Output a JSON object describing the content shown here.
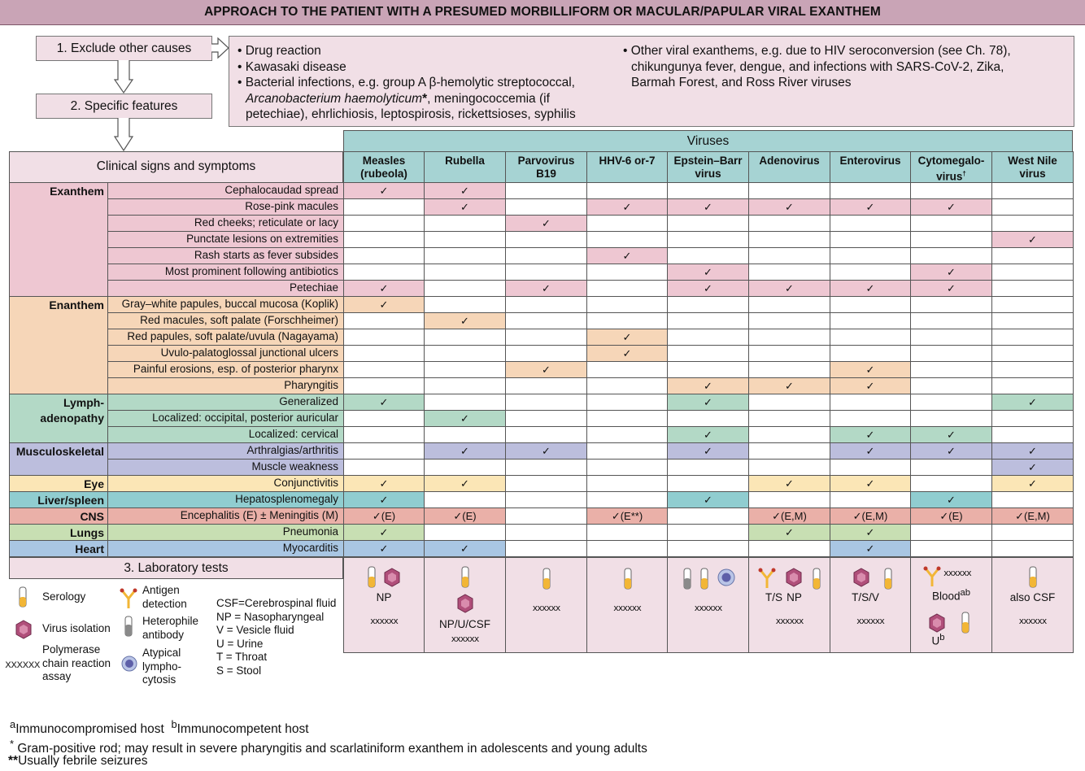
{
  "title": "APPROACH TO THE PATIENT WITH A PRESUMED MORBILLIFORM OR MACULAR/PAPULAR VIRAL EXANTHEM",
  "steps": {
    "step1": "1. Exclude other causes",
    "step2": "2. Specific features",
    "step3": "3. Laboratory tests"
  },
  "exclude": {
    "left": [
      "Drug reaction",
      "Kawasaki disease",
      "Bacterial infections, e.g. group A β-hemolytic streptococcal,"
    ],
    "left_italic": "Arcanobacterium haemolyticum",
    "left_star": "*",
    "left_after_italic": ", meningococcemia (if",
    "left_last": "petechiae), ehrlichiosis, leptospirosis, rickettsioses, syphilis",
    "right": [
      "Other viral exanthems, e.g. due to HIV seroconversion (see Ch. 78),",
      "chikungunya fever, dengue, and infections with SARS-CoV-2, Zika,",
      "Barmah Forest, and Ross River viruses"
    ]
  },
  "table": {
    "viruses_label": "Viruses",
    "signs_header": "Clinical signs and symptoms",
    "viruses": [
      {
        "l1": "Measles",
        "l2": "(rubeola)",
        "sup": ""
      },
      {
        "l1": "Rubella",
        "l2": "",
        "sup": ""
      },
      {
        "l1": "Parvovirus",
        "l2": "B19",
        "sup": ""
      },
      {
        "l1": "HHV-6 or-7",
        "l2": "",
        "sup": ""
      },
      {
        "l1": "Epstein–Barr",
        "l2": "virus",
        "sup": ""
      },
      {
        "l1": "Adenovirus",
        "l2": "",
        "sup": ""
      },
      {
        "l1": "Enterovirus",
        "l2": "",
        "sup": ""
      },
      {
        "l1": "Cytomegalo-",
        "l2": "virus",
        "sup": "†"
      },
      {
        "l1": "West Nile",
        "l2": "virus",
        "sup": ""
      }
    ],
    "categories": [
      {
        "name": "Exanthem",
        "name2": "",
        "color": "#eec7d2",
        "rows": [
          {
            "sign": "Cephalocaudad spread",
            "marks": [
              "✓",
              "✓",
              "",
              "",
              "",
              "",
              "",
              "",
              ""
            ]
          },
          {
            "sign": "Rose-pink macules",
            "marks": [
              "",
              "✓",
              "",
              "✓",
              "✓",
              "✓",
              "✓",
              "✓",
              ""
            ]
          },
          {
            "sign": "Red cheeks; reticulate or lacy",
            "marks": [
              "",
              "",
              "✓",
              "",
              "",
              "",
              "",
              "",
              ""
            ]
          },
          {
            "sign": "Punctate lesions on extremities",
            "marks": [
              "",
              "",
              "",
              "",
              "",
              "",
              "",
              "",
              "✓"
            ]
          },
          {
            "sign": "Rash starts as fever subsides",
            "marks": [
              "",
              "",
              "",
              "✓",
              "",
              "",
              "",
              "",
              ""
            ]
          },
          {
            "sign": "Most prominent following antibiotics",
            "marks": [
              "",
              "",
              "",
              "",
              "✓",
              "",
              "",
              "✓",
              ""
            ]
          },
          {
            "sign": "Petechiae",
            "marks": [
              "✓",
              "",
              "✓",
              "",
              "✓",
              "✓",
              "✓",
              "✓",
              ""
            ]
          }
        ]
      },
      {
        "name": "Enanthem",
        "name2": "",
        "color": "#f6d6b8",
        "rows": [
          {
            "sign": "Gray–white papules, buccal mucosa (Koplik)",
            "marks": [
              "✓",
              "",
              "",
              "",
              "",
              "",
              "",
              "",
              ""
            ]
          },
          {
            "sign": "Red macules, soft palate (Forschheimer)",
            "marks": [
              "",
              "✓",
              "",
              "",
              "",
              "",
              "",
              "",
              ""
            ]
          },
          {
            "sign": "Red papules, soft palate/uvula (Nagayama)",
            "marks": [
              "",
              "",
              "",
              "✓",
              "",
              "",
              "",
              "",
              ""
            ]
          },
          {
            "sign": "Uvulo-palatoglossal junctional ulcers",
            "marks": [
              "",
              "",
              "",
              "✓",
              "",
              "",
              "",
              "",
              ""
            ]
          },
          {
            "sign": "Painful erosions, esp. of posterior pharynx",
            "marks": [
              "",
              "",
              "✓",
              "",
              "",
              "",
              "✓",
              "",
              ""
            ]
          },
          {
            "sign": "Pharyngitis",
            "marks": [
              "",
              "",
              "",
              "",
              "✓",
              "✓",
              "✓",
              "",
              ""
            ]
          }
        ]
      },
      {
        "name": "Lymph-",
        "name2": "adenopathy",
        "color": "#b3d9c6",
        "rows": [
          {
            "sign": "Generalized",
            "marks": [
              "✓",
              "",
              "",
              "",
              "✓",
              "",
              "",
              "",
              "✓"
            ]
          },
          {
            "sign": "Localized: occipital, posterior auricular",
            "marks": [
              "",
              "✓",
              "",
              "",
              "",
              "",
              "",
              "",
              ""
            ]
          },
          {
            "sign": "Localized: cervical",
            "marks": [
              "",
              "",
              "",
              "",
              "✓",
              "",
              "✓",
              "✓",
              ""
            ]
          }
        ]
      },
      {
        "name": "Musculoskeletal",
        "name2": "",
        "color": "#bcbedd",
        "rows": [
          {
            "sign": "Arthralgias/arthritis",
            "marks": [
              "",
              "✓",
              "✓",
              "",
              "✓",
              "",
              "✓",
              "✓",
              "✓"
            ]
          },
          {
            "sign": "Muscle weakness",
            "marks": [
              "",
              "",
              "",
              "",
              "",
              "",
              "",
              "",
              "✓"
            ]
          }
        ]
      },
      {
        "name": "Eye",
        "name2": "",
        "color": "#fbe6b6",
        "rows": [
          {
            "sign": "Conjunctivitis",
            "marks": [
              "✓",
              "✓",
              "",
              "",
              "",
              "✓",
              "✓",
              "",
              "✓"
            ]
          }
        ]
      },
      {
        "name": "Liver/spleen",
        "name2": "",
        "color": "#90cdd0",
        "rows": [
          {
            "sign": "Hepatosplenomegaly",
            "marks": [
              "✓",
              "",
              "",
              "",
              "✓",
              "",
              "",
              "✓",
              ""
            ]
          }
        ]
      },
      {
        "name": "CNS",
        "name2": "",
        "color": "#eab0a8",
        "rows": [
          {
            "sign": "Encephalitis (E) ± Meningitis (M)",
            "marks": [
              "✓(E)",
              "✓(E)",
              "",
              "✓(E**)",
              "",
              "✓(E,M)",
              "✓(E,M)",
              "✓(E)",
              "✓(E,M)"
            ]
          }
        ]
      },
      {
        "name": "Lungs",
        "name2": "",
        "color": "#c8dfb3",
        "rows": [
          {
            "sign": "Pneumonia",
            "marks": [
              "✓",
              "",
              "",
              "",
              "",
              "✓",
              "✓",
              "",
              ""
            ]
          }
        ]
      },
      {
        "name": "Heart",
        "name2": "",
        "color": "#a9c6e3",
        "rows": [
          {
            "sign": "Myocarditis",
            "marks": [
              "✓",
              "✓",
              "",
              "",
              "",
              "",
              "✓",
              "",
              ""
            ]
          }
        ]
      }
    ]
  },
  "lab": {
    "measles": {
      "l1": "NP",
      "l2": "xxxxxx"
    },
    "rubella": {
      "l1": "NP/U/CSF",
      "l2": "xxxxxx"
    },
    "parvo": {
      "l1": "xxxxxx"
    },
    "hhv": {
      "l1": "xxxxxx"
    },
    "ebv": {
      "l1": "xxxxxx"
    },
    "adeno": {
      "a": "T/S",
      "b": "NP",
      "l2": "xxxxxx"
    },
    "entero": {
      "l1": "T/S/V",
      "l2": "xxxxxx"
    },
    "cmv": {
      "pcr": "xxxxxx",
      "blood": "Blood",
      "blood_sup": "ab",
      "u": "U",
      "u_sup": "b"
    },
    "wnv": {
      "l1": "also CSF",
      "l2": "xxxxxx"
    }
  },
  "legend": {
    "serology": "Serology",
    "antigen": "Antigen detection",
    "virus_isolation": "Virus isolation",
    "heterophile": "Heterophile antibody",
    "pcr_symbol": "xxxxxx",
    "pcr": "Polymerase chain reaction assay",
    "atypical": "Atypical lympho- cytosis",
    "abbrevs": [
      "CSF=Cerebrospinal fluid",
      "NP = Nasopharyngeal",
      "V = Vesicle fluid",
      "U = Urine",
      "T = Throat",
      "S = Stool"
    ]
  },
  "footnotes": {
    "a_sup": "a",
    "a_text": "Immunocompromised host",
    "b_sup": "b",
    "b_text": "Immunocompetent host",
    "star": "*",
    "star_text": "Gram-positive rod; may result in severe pharyngitis and scarlatiniform exanthem in adolescents and young adults",
    "dstar": "**",
    "dstar_text": "Usually febrile seizures"
  },
  "colors": {
    "header": "#a6d3d3",
    "title_bar": "#c9a4b6",
    "step_box": "#f1dfe6"
  }
}
